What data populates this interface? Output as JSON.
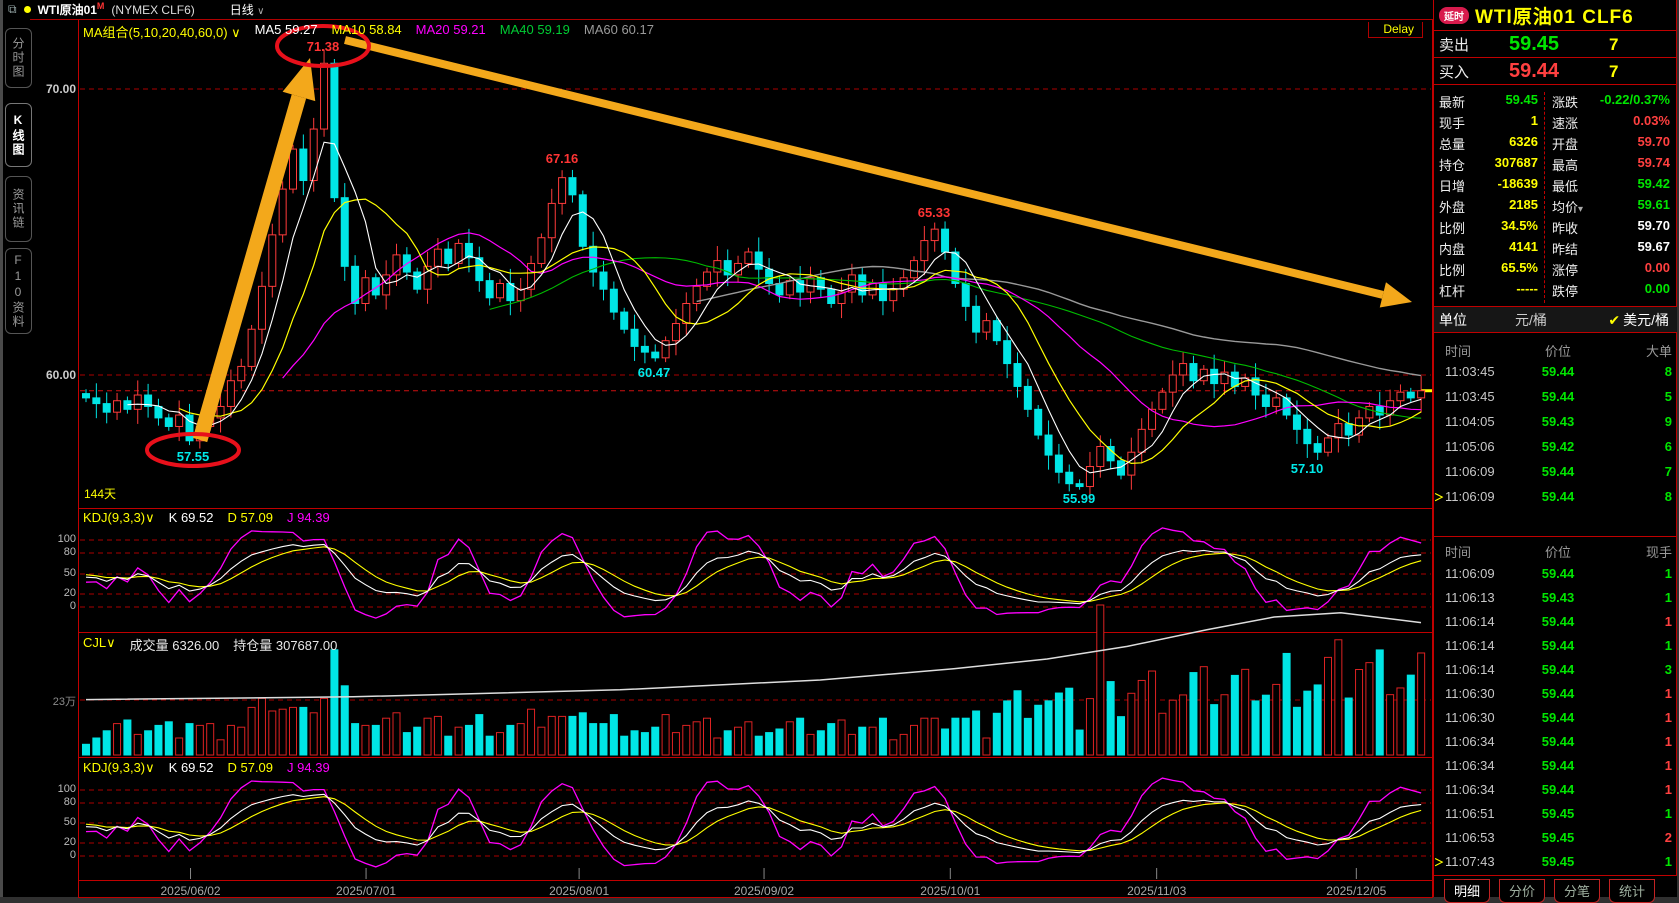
{
  "colors": {
    "up": "#ff3b3b",
    "down": "#00e5e5",
    "border": "#c00000",
    "grid": "#aa0000",
    "accent_yellow": "#ffff00",
    "green": "#00e600",
    "red": "#ff4040",
    "ma5": "#ffffff",
    "ma10": "#ffff00",
    "ma20": "#ff00ff",
    "ma40": "#00bb00",
    "ma60": "#999999",
    "arrow": "#f3a81b",
    "circle": "#e8101b"
  },
  "window": {
    "link_icon": "⧉",
    "symbol": "WTI原油01",
    "flag": "M",
    "exchange": "(NYMEX CLF6)",
    "period": "日线",
    "caret": "∨",
    "delay_label": "Delay"
  },
  "sidebar": {
    "tabs": [
      {
        "label": "分时图",
        "active": false
      },
      {
        "label": "K线图",
        "active": true
      },
      {
        "label": "资讯链",
        "active": false
      },
      {
        "label": "F10资料",
        "active": false
      }
    ]
  },
  "chart": {
    "ma_combo_label": "MA组合(5,10,20,40,60,0)",
    "ma_items": [
      {
        "label": "MA5",
        "value": "59.27",
        "color": "#ffffff"
      },
      {
        "label": "MA10",
        "value": "58.84",
        "color": "#ffff00"
      },
      {
        "label": "MA20",
        "value": "59.21",
        "color": "#ff00ff"
      },
      {
        "label": "MA40",
        "value": "59.19",
        "color": "#00cc33"
      },
      {
        "label": "MA60",
        "value": "60.17",
        "color": "#999999"
      }
    ],
    "y_labels_main": [
      "70.00",
      "60.00"
    ],
    "kdj": {
      "label": "KDJ(9,3,3)",
      "k": "K 69.52",
      "d": "D 57.09",
      "j": "J 94.39"
    },
    "kdj_axis": [
      "100",
      "80",
      "50",
      "20",
      "0"
    ],
    "cjl": {
      "label": "CJL",
      "vol": "成交量 6326.00",
      "oi": "持仓量 307687.00"
    },
    "vol_axis_label": "23万",
    "label_144": "144天",
    "annotations": {
      "peak": "71.38",
      "low1": "57.55",
      "high2": "67.16",
      "low2": "60.47",
      "high3": "65.33",
      "low3": "55.99",
      "low4": "57.10"
    }
  },
  "chart_data": {
    "type": "candlestick",
    "symbol": "WTI原油01 CLF6",
    "timeframe": "日线",
    "ylim_main": [
      54.5,
      71.8
    ],
    "y_gridlines": [
      70.0,
      60.0
    ],
    "last_price": 59.45,
    "x_labels": [
      {
        "label": "2025/06/02",
        "f": 0.078
      },
      {
        "label": "2025/07/01",
        "f": 0.209
      },
      {
        "label": "2025/08/01",
        "f": 0.368
      },
      {
        "label": "2025/09/02",
        "f": 0.506
      },
      {
        "label": "2025/10/01",
        "f": 0.645
      },
      {
        "label": "2025/11/03",
        "f": 0.799
      },
      {
        "label": "2025/12/05",
        "f": 0.948
      }
    ],
    "closes": [
      59.2,
      59.0,
      58.7,
      59.1,
      58.8,
      59.3,
      58.9,
      58.5,
      58.2,
      58.6,
      57.7,
      58.2,
      58.5,
      58.9,
      59.8,
      60.3,
      61.6,
      63.1,
      64.9,
      66.5,
      67.9,
      66.8,
      68.6,
      70.9,
      66.2,
      63.8,
      62.5,
      63.4,
      62.8,
      63.5,
      64.2,
      63.6,
      63.0,
      63.8,
      64.4,
      63.9,
      64.6,
      64.1,
      63.3,
      62.7,
      63.2,
      62.6,
      63.0,
      63.9,
      64.8,
      66.0,
      66.9,
      66.3,
      64.5,
      63.6,
      63.0,
      62.2,
      61.6,
      61.0,
      60.8,
      60.6,
      61.2,
      61.8,
      62.5,
      63.1,
      63.6,
      64.0,
      63.5,
      63.9,
      64.3,
      63.7,
      63.2,
      62.8,
      63.3,
      62.9,
      63.4,
      63.0,
      62.5,
      62.9,
      63.5,
      62.8,
      63.2,
      62.6,
      63.0,
      63.4,
      64.0,
      64.7,
      65.1,
      64.3,
      63.2,
      62.4,
      61.5,
      61.9,
      61.2,
      60.4,
      59.6,
      58.8,
      57.9,
      57.2,
      56.6,
      56.2,
      56.1,
      56.8,
      57.5,
      57.0,
      56.5,
      57.3,
      58.1,
      58.8,
      59.4,
      60.0,
      60.4,
      59.8,
      60.2,
      59.7,
      60.1,
      59.6,
      59.9,
      59.3,
      58.9,
      59.2,
      58.6,
      58.1,
      57.6,
      57.3,
      57.8,
      58.3,
      57.9,
      58.5,
      58.9,
      58.6,
      59.1,
      59.4,
      59.2,
      59.45
    ],
    "key_points": [
      {
        "i": 10,
        "low": 57.55
      },
      {
        "i": 23,
        "high": 71.38
      },
      {
        "i": 46,
        "high": 67.16
      },
      {
        "i": 55,
        "low": 60.47
      },
      {
        "i": 82,
        "high": 65.33
      },
      {
        "i": 96,
        "low": 55.99
      },
      {
        "i": 118,
        "low": 57.1
      }
    ],
    "kdj_last": {
      "k": 69.52,
      "d": 57.09,
      "j": 94.39
    },
    "volume_total": 6326,
    "open_interest": 307687,
    "open_interest_path": [
      [
        0,
        0.36
      ],
      [
        0.2,
        0.38
      ],
      [
        0.4,
        0.43
      ],
      [
        0.55,
        0.5
      ],
      [
        0.65,
        0.58
      ],
      [
        0.72,
        0.65
      ],
      [
        0.78,
        0.74
      ],
      [
        0.84,
        0.86
      ],
      [
        0.89,
        0.95
      ],
      [
        0.94,
        0.98
      ],
      [
        1,
        0.91
      ]
    ]
  },
  "quote": {
    "badge": "延时",
    "title": "WTI原油01 CLF6",
    "sell": {
      "label": "卖出",
      "price": "59.45",
      "qty": "7"
    },
    "buy": {
      "label": "买入",
      "price": "59.44",
      "qty": "7"
    },
    "grid": [
      {
        "l1": "最新",
        "v1": "59.45",
        "c1": "vg",
        "l2": "涨跌",
        "v2": "-0.22/0.37%",
        "c2": "vg"
      },
      {
        "l1": "现手",
        "v1": "1",
        "c1": "vy",
        "l2": "速涨",
        "v2": "0.03%",
        "c2": "vr"
      },
      {
        "l1": "总量",
        "v1": "6326",
        "c1": "vy",
        "l2": "开盘",
        "v2": "59.70",
        "c2": "vr"
      },
      {
        "l1": "持仓",
        "v1": "307687",
        "c1": "vy",
        "l2": "最高",
        "v2": "59.74",
        "c2": "vr"
      },
      {
        "l1": "日增",
        "v1": "-18639",
        "c1": "vy",
        "l2": "最低",
        "v2": "59.42",
        "c2": "vg"
      },
      {
        "l1": "外盘",
        "v1": "2185",
        "c1": "vy",
        "l2": "均价",
        "arrow": true,
        "v2": "59.61",
        "c2": "vg"
      },
      {
        "l1": "比例",
        "v1": "34.5%",
        "c1": "vy",
        "l2": "昨收",
        "v2": "59.70",
        "c2": "vw"
      },
      {
        "l1": "内盘",
        "v1": "4141",
        "c1": "vy",
        "l2": "昨结",
        "v2": "59.67",
        "c2": "vw"
      },
      {
        "l1": "比例",
        "v1": "65.5%",
        "c1": "vy",
        "l2": "涨停",
        "v2": "0.00",
        "c2": "vr"
      },
      {
        "l1": "杠杆",
        "v1": "-----",
        "c1": "vy",
        "l2": "跌停",
        "v2": "0.00",
        "c2": "vg"
      }
    ],
    "unit": {
      "label": "单位",
      "left": "元/桶",
      "check": "✔",
      "right": "美元/桶"
    },
    "tape_big": {
      "headers": [
        "时间",
        "价位",
        "大单"
      ],
      "rows": [
        {
          "t": "11:03:45",
          "p": "59.44",
          "q": "8",
          "qc": "vg"
        },
        {
          "t": "11:03:45",
          "p": "59.44",
          "q": "5",
          "qc": "vg"
        },
        {
          "t": "11:04:05",
          "p": "59.43",
          "q": "9",
          "qc": "vg"
        },
        {
          "t": "11:05:06",
          "p": "59.42",
          "q": "6",
          "qc": "vg"
        },
        {
          "t": "11:06:09",
          "p": "59.44",
          "q": "7",
          "qc": "vg"
        },
        {
          "t": "11:06:09",
          "p": "59.44",
          "q": "8",
          "qc": "vg",
          "marker": true
        }
      ]
    },
    "tape_small": {
      "headers": [
        "时间",
        "价位",
        "现手"
      ],
      "rows": [
        {
          "t": "11:06:09",
          "p": "59.44",
          "q": "1",
          "qc": "vg"
        },
        {
          "t": "11:06:13",
          "p": "59.43",
          "q": "1",
          "qc": "vg"
        },
        {
          "t": "11:06:14",
          "p": "59.44",
          "q": "1",
          "qc": "vr"
        },
        {
          "t": "11:06:14",
          "p": "59.44",
          "q": "1",
          "qc": "vg"
        },
        {
          "t": "11:06:14",
          "p": "59.44",
          "q": "3",
          "qc": "vg"
        },
        {
          "t": "11:06:30",
          "p": "59.44",
          "q": "1",
          "qc": "vr"
        },
        {
          "t": "11:06:30",
          "p": "59.44",
          "q": "1",
          "qc": "vr"
        },
        {
          "t": "11:06:34",
          "p": "59.44",
          "q": "1",
          "qc": "vr"
        },
        {
          "t": "11:06:34",
          "p": "59.44",
          "q": "1",
          "qc": "vr"
        },
        {
          "t": "11:06:34",
          "p": "59.44",
          "q": "1",
          "qc": "vr"
        },
        {
          "t": "11:06:51",
          "p": "59.45",
          "q": "1",
          "qc": "vg"
        },
        {
          "t": "11:06:53",
          "p": "59.45",
          "q": "2",
          "qc": "vr"
        },
        {
          "t": "11:07:43",
          "p": "59.45",
          "q": "1",
          "qc": "vg",
          "marker": true
        }
      ]
    },
    "tabs": [
      {
        "label": "明细",
        "active": true
      },
      {
        "label": "分价",
        "active": false
      },
      {
        "label": "分笔",
        "active": false
      },
      {
        "label": "统计",
        "active": false
      }
    ]
  }
}
